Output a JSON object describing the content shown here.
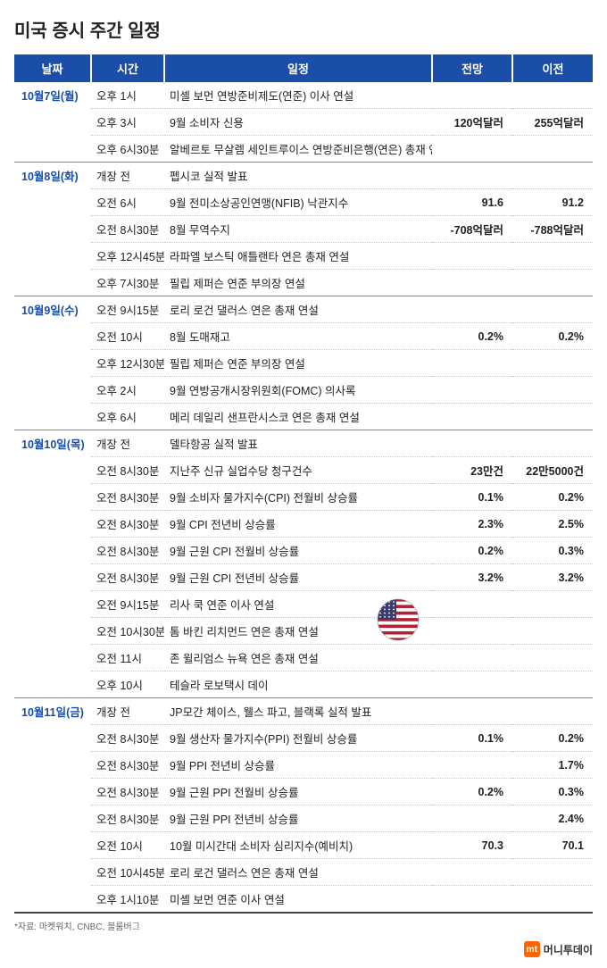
{
  "title": "미국 증시 주간 일정",
  "columns": {
    "date": "날짜",
    "time": "시간",
    "event": "일정",
    "forecast": "전망",
    "previous": "이전"
  },
  "col_widths": {
    "date": 86,
    "time": 82,
    "event": 300,
    "forecast": 90,
    "previous": 90
  },
  "header_bg": "#1a4ea8",
  "header_fg": "#ffffff",
  "date_color": "#1a4ea8",
  "row_border": "#c8c8c8",
  "day_border": "#888888",
  "days": [
    {
      "date": "10월7일(월)",
      "rows": [
        {
          "time": "오후 1시",
          "event": "미셸 보먼 연방준비제도(연준) 이사 연설",
          "forecast": "",
          "previous": ""
        },
        {
          "time": "오후 3시",
          "event": "9월 소비자 신용",
          "forecast": "120억달러",
          "previous": "255억달러"
        },
        {
          "time": "오후 6시30분",
          "event": "알베르토 무살렘 세인트루이스 연방준비은행(연은) 총재 연설",
          "forecast": "",
          "previous": ""
        }
      ]
    },
    {
      "date": "10월8일(화)",
      "rows": [
        {
          "time": "개장 전",
          "event": "펩시코 실적 발표",
          "forecast": "",
          "previous": ""
        },
        {
          "time": "오전 6시",
          "event": "9월 전미소상공인연맹(NFIB) 낙관지수",
          "forecast": "91.6",
          "previous": "91.2"
        },
        {
          "time": "오전 8시30분",
          "event": "8월 무역수지",
          "forecast": "-708억달러",
          "previous": "-788억달러"
        },
        {
          "time": "오후 12시45분",
          "event": "라파엘 보스틱 애틀랜타 연은 총재 연설",
          "forecast": "",
          "previous": ""
        },
        {
          "time": "오후 7시30분",
          "event": "필립 제퍼슨 연준 부의장 연설",
          "forecast": "",
          "previous": ""
        }
      ]
    },
    {
      "date": "10월9일(수)",
      "rows": [
        {
          "time": "오전 9시15분",
          "event": "로리 로건 댈러스 연은 총재 연설",
          "forecast": "",
          "previous": ""
        },
        {
          "time": "오전 10시",
          "event": "8월 도매재고",
          "forecast": "0.2%",
          "previous": "0.2%"
        },
        {
          "time": "오후 12시30분",
          "event": "필립 제퍼슨 연준 부의장 연설",
          "forecast": "",
          "previous": ""
        },
        {
          "time": "오후 2시",
          "event": "9월 연방공개시장위원회(FOMC) 의사록",
          "forecast": "",
          "previous": ""
        },
        {
          "time": "오후 6시",
          "event": "메리 데일리 샌프란시스코 연은 총재 연설",
          "forecast": "",
          "previous": ""
        }
      ]
    },
    {
      "date": "10월10일(목)",
      "rows": [
        {
          "time": "개장 전",
          "event": "델타항공 실적 발표",
          "forecast": "",
          "previous": ""
        },
        {
          "time": "오전 8시30분",
          "event": "지난주 신규 실업수당 청구건수",
          "forecast": "23만건",
          "previous": "22만5000건"
        },
        {
          "time": "오전 8시30분",
          "event": "9월 소비자 물가지수(CPI) 전월비 상승률",
          "forecast": "0.1%",
          "previous": "0.2%"
        },
        {
          "time": "오전 8시30분",
          "event": "9월 CPI 전년비 상승률",
          "forecast": "2.3%",
          "previous": "2.5%"
        },
        {
          "time": "오전 8시30분",
          "event": "9월 근원 CPI 전월비 상승률",
          "forecast": "0.2%",
          "previous": "0.3%"
        },
        {
          "time": "오전 8시30분",
          "event": "9월 근원 CPI 전년비 상승률",
          "forecast": "3.2%",
          "previous": "3.2%"
        },
        {
          "time": "오전 9시15분",
          "event": "리사 쿡 연준 이사 연설",
          "forecast": "",
          "previous": ""
        },
        {
          "time": "오전 10시30분",
          "event": "톰 바킨 리치먼드 연은 총재 연설",
          "forecast": "",
          "previous": "",
          "flag": true
        },
        {
          "time": "오전 11시",
          "event": "존 윌리엄스 뉴욕 연은 총재 연설",
          "forecast": "",
          "previous": ""
        },
        {
          "time": "오후 10시",
          "event": "테슬라 로보택시 데이",
          "forecast": "",
          "previous": ""
        }
      ]
    },
    {
      "date": "10월11일(금)",
      "rows": [
        {
          "time": "개장 전",
          "event": "JP모간 체이스, 웰스 파고, 블랙록 실적 발표",
          "forecast": "",
          "previous": ""
        },
        {
          "time": "오전 8시30분",
          "event": "9월 생산자 물가지수(PPI) 전월비 상승률",
          "forecast": "0.1%",
          "previous": "0.2%"
        },
        {
          "time": "오전 8시30분",
          "event": "9월 PPI 전년비 상승률",
          "forecast": "",
          "previous": "1.7%"
        },
        {
          "time": "오전 8시30분",
          "event": "9월 근원 PPI 전월비 상승률",
          "forecast": "0.2%",
          "previous": "0.3%"
        },
        {
          "time": "오전 8시30분",
          "event": "9월 근원 PPI 전년비 상승률",
          "forecast": "",
          "previous": "2.4%"
        },
        {
          "time": "오전 10시",
          "event": "10월 미시간대 소비자 심리지수(예비치)",
          "forecast": "70.3",
          "previous": "70.1"
        },
        {
          "time": "오전 10시45분",
          "event": "로리 로건 댈러스 연은 총재 연설",
          "forecast": "",
          "previous": ""
        },
        {
          "time": "오후 1시10분",
          "event": "미셸 보먼 연준 이사 연설",
          "forecast": "",
          "previous": ""
        }
      ]
    }
  ],
  "footnote": "*자료: 마켓워치, CNBC, 블룸버그",
  "footer": {
    "logo": "mt",
    "text": "머니투데이"
  },
  "flag_svg": {
    "stripe_red": "#b22234",
    "stripe_white": "#ffffff",
    "canton": "#3c3b6e"
  }
}
